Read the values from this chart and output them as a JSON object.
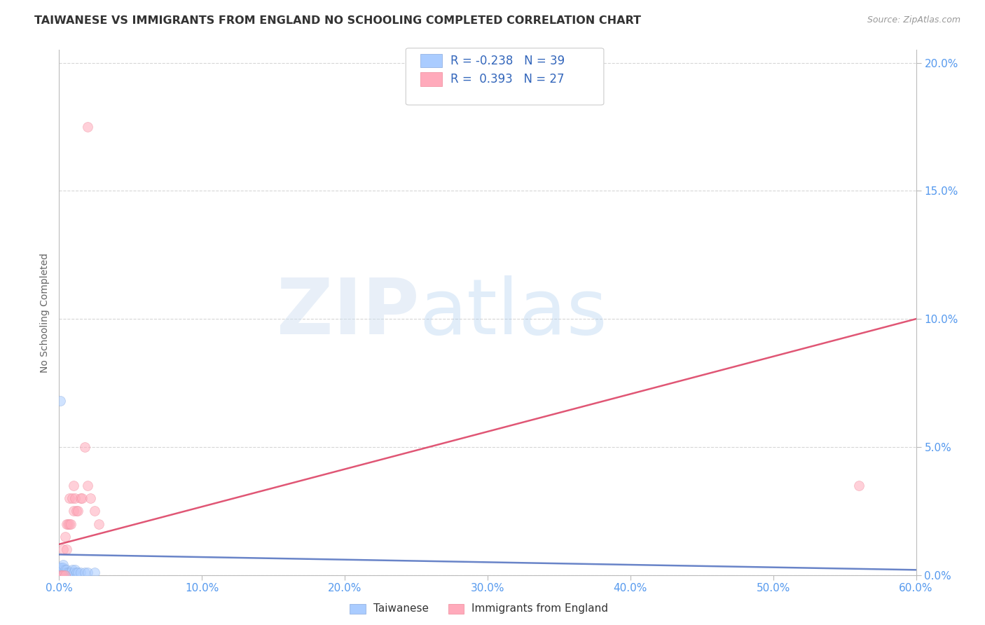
{
  "title": "TAIWANESE VS IMMIGRANTS FROM ENGLAND NO SCHOOLING COMPLETED CORRELATION CHART",
  "source": "Source: ZipAtlas.com",
  "ylabel": "No Schooling Completed",
  "title_color": "#333333",
  "title_fontsize": 11.5,
  "background_color": "#ffffff",
  "plot_bg_color": "#ffffff",
  "grid_color": "#cccccc",
  "xlim": [
    0.0,
    0.6
  ],
  "ylim": [
    0.0,
    0.205
  ],
  "xticks": [
    0.0,
    0.1,
    0.2,
    0.3,
    0.4,
    0.5,
    0.6
  ],
  "xtick_labels": [
    "0.0%",
    "10.0%",
    "20.0%",
    "30.0%",
    "40.0%",
    "50.0%",
    "60.0%"
  ],
  "yticks": [
    0.0,
    0.05,
    0.1,
    0.15,
    0.2
  ],
  "ytick_labels": [
    "0.0%",
    "5.0%",
    "10.0%",
    "15.0%",
    "20.0%"
  ],
  "tick_color": "#5599ee",
  "axis_color": "#bbbbbb",
  "taiwanese_color": "#aaccff",
  "taiwanese_edge": "#88aadd",
  "england_color": "#ffaabb",
  "england_edge": "#ee8899",
  "taiwanese_R": -0.238,
  "taiwanese_N": 39,
  "england_R": 0.393,
  "england_N": 27,
  "legend_R_color": "#3366bb",
  "trendline_taiwanese_color": "#4466bb",
  "trendline_england_color": "#dd4466",
  "marker_size": 100,
  "marker_alpha": 0.55,
  "taiwanese_x": [
    0.001,
    0.001,
    0.001,
    0.001,
    0.001,
    0.001,
    0.001,
    0.001,
    0.001,
    0.001,
    0.002,
    0.002,
    0.002,
    0.002,
    0.002,
    0.002,
    0.003,
    0.003,
    0.003,
    0.003,
    0.003,
    0.004,
    0.004,
    0.004,
    0.005,
    0.005,
    0.006,
    0.007,
    0.008,
    0.009,
    0.01,
    0.011,
    0.012,
    0.013,
    0.015,
    0.018,
    0.02,
    0.025,
    0.001
  ],
  "taiwanese_y": [
    0.0,
    0.0,
    0.0,
    0.0,
    0.001,
    0.001,
    0.001,
    0.002,
    0.002,
    0.003,
    0.0,
    0.0,
    0.001,
    0.001,
    0.002,
    0.003,
    0.0,
    0.001,
    0.002,
    0.003,
    0.004,
    0.0,
    0.001,
    0.002,
    0.001,
    0.002,
    0.001,
    0.001,
    0.001,
    0.002,
    0.001,
    0.002,
    0.001,
    0.001,
    0.001,
    0.001,
    0.001,
    0.001,
    0.068
  ],
  "england_x": [
    0.001,
    0.002,
    0.003,
    0.003,
    0.004,
    0.004,
    0.005,
    0.005,
    0.006,
    0.007,
    0.007,
    0.008,
    0.009,
    0.01,
    0.01,
    0.011,
    0.012,
    0.013,
    0.015,
    0.016,
    0.018,
    0.02,
    0.022,
    0.025,
    0.028,
    0.56,
    0.02
  ],
  "england_y": [
    0.0,
    0.0,
    0.0,
    0.01,
    0.0,
    0.015,
    0.01,
    0.02,
    0.02,
    0.02,
    0.03,
    0.02,
    0.03,
    0.025,
    0.035,
    0.03,
    0.025,
    0.025,
    0.03,
    0.03,
    0.05,
    0.035,
    0.03,
    0.025,
    0.02,
    0.035,
    0.175
  ],
  "trendline_england_x0": 0.0,
  "trendline_england_y0": 0.012,
  "trendline_england_x1": 0.6,
  "trendline_england_y1": 0.1,
  "trendline_taiwanese_x0": 0.0,
  "trendline_taiwanese_y0": 0.008,
  "trendline_taiwanese_x1": 0.6,
  "trendline_taiwanese_y1": 0.002
}
